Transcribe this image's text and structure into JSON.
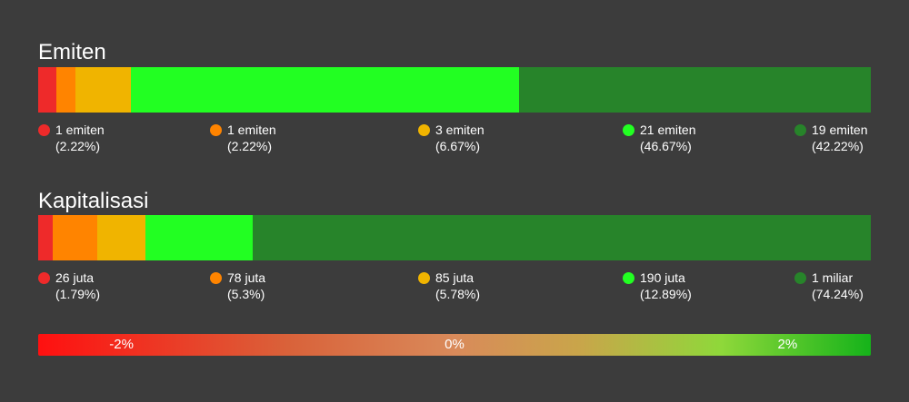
{
  "chart_data": [
    {
      "type": "bar",
      "stacked": "horizontal-100%",
      "title": "Emiten",
      "segments": [
        {
          "value": 1,
          "percent": 2.22,
          "label": "1 emiten",
          "pct_label": "(2.22%)",
          "color": "#ee2a2a"
        },
        {
          "value": 1,
          "percent": 2.22,
          "label": "1 emiten",
          "pct_label": "(2.22%)",
          "color": "#ff8400"
        },
        {
          "value": 3,
          "percent": 6.67,
          "label": "3 emiten",
          "pct_label": "(6.67%)",
          "color": "#f0b400"
        },
        {
          "value": 21,
          "percent": 46.67,
          "label": "21 emiten",
          "pct_label": "(46.67%)",
          "color": "#22ff22"
        },
        {
          "value": 19,
          "percent": 42.22,
          "label": "19 emiten",
          "pct_label": "(42.22%)",
          "color": "#27842a"
        }
      ]
    },
    {
      "type": "bar",
      "stacked": "horizontal-100%",
      "title": "Kapitalisasi",
      "segments": [
        {
          "percent": 1.79,
          "label": "26 juta",
          "pct_label": "(1.79%)",
          "color": "#ee2a2a"
        },
        {
          "percent": 5.3,
          "label": "78 juta",
          "pct_label": "(5.3%)",
          "color": "#ff8400"
        },
        {
          "percent": 5.78,
          "label": "85 juta",
          "pct_label": "(5.78%)",
          "color": "#f0b400"
        },
        {
          "percent": 12.89,
          "label": "190 juta",
          "pct_label": "(12.89%)",
          "color": "#22ff22"
        },
        {
          "percent": 74.24,
          "label": "1 miliar",
          "pct_label": "(74.24%)",
          "color": "#27842a"
        }
      ]
    }
  ],
  "scale": {
    "labels": [
      "-2%",
      "0%",
      "2%"
    ],
    "stops": [
      -2,
      0,
      2
    ],
    "range": [
      -2.5,
      2.5
    ]
  }
}
